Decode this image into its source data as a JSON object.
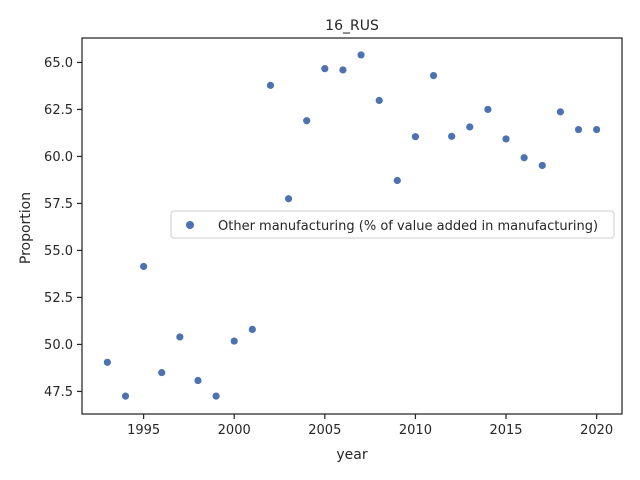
{
  "chart_data": {
    "type": "scatter",
    "title": "16_RUS",
    "xlabel": "year",
    "ylabel": "Proportion",
    "xlim": [
      1991.6,
      2021.4
    ],
    "ylim": [
      46.3,
      66.3
    ],
    "xticks": [
      1995,
      2000,
      2005,
      2010,
      2015,
      2020
    ],
    "xtick_labels": [
      "1995",
      "2000",
      "2005",
      "2010",
      "2015",
      "2020"
    ],
    "yticks": [
      47.5,
      50.0,
      52.5,
      55.0,
      57.5,
      60.0,
      62.5,
      65.0
    ],
    "ytick_labels": [
      "47.5",
      "50.0",
      "52.5",
      "55.0",
      "57.5",
      "60.0",
      "62.5",
      "65.0"
    ],
    "grid": false,
    "legend_position": "center-right",
    "series": [
      {
        "name": "Other manufacturing (% of value added in manufacturing)",
        "color": "#4c72b0",
        "x": [
          1993,
          1994,
          1995,
          1996,
          1997,
          1998,
          1999,
          2000,
          2001,
          2002,
          2003,
          2004,
          2005,
          2006,
          2007,
          2008,
          2009,
          2010,
          2011,
          2012,
          2013,
          2014,
          2015,
          2016,
          2017,
          2018,
          2019,
          2020
        ],
        "y": [
          49.05,
          47.25,
          54.15,
          48.5,
          50.4,
          48.08,
          47.25,
          50.18,
          50.8,
          63.78,
          57.75,
          61.9,
          64.67,
          64.6,
          65.4,
          62.98,
          58.72,
          61.05,
          64.3,
          61.07,
          61.57,
          62.5,
          60.93,
          59.93,
          59.52,
          62.37,
          61.43,
          61.43
        ]
      }
    ]
  }
}
